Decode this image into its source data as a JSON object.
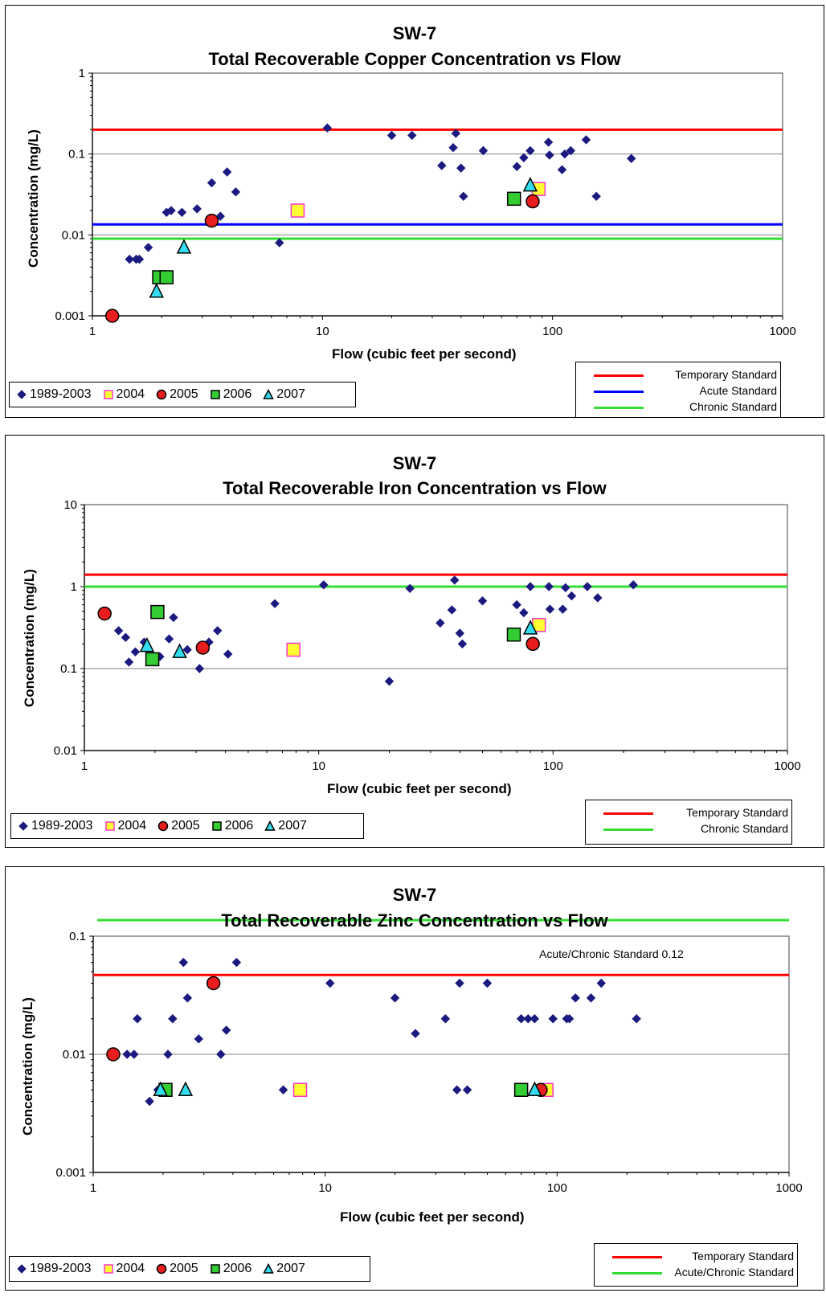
{
  "chart_data": [
    {
      "type": "scatter",
      "title": "SW-7",
      "subtitle": "Total Recoverable Copper Concentration vs Flow",
      "xlabel": "Flow (cubic feet per second)",
      "ylabel": "Concentration (mg/L)",
      "xscale": "log",
      "yscale": "log",
      "xlim": [
        1,
        1000
      ],
      "ylim": [
        0.001,
        1
      ],
      "xticks": [
        "1",
        "10",
        "100",
        "1000"
      ],
      "yticks": [
        "0.001",
        "0.01",
        "0.1",
        "1"
      ],
      "grid": "horizontal",
      "series": [
        {
          "name": "1989-2003",
          "marker": "diamond",
          "color": "#1a1a80",
          "x": [
            1.45,
            1.55,
            1.6,
            1.75,
            2.1,
            2.2,
            2.45,
            2.85,
            3.3,
            3.6,
            3.85,
            4.2,
            6.5,
            10.5,
            20,
            24.5,
            33,
            37,
            38,
            40,
            41,
            50,
            70,
            75,
            80,
            96,
            97,
            110,
            113,
            120,
            140,
            155,
            220
          ],
          "y": [
            0.005,
            0.005,
            0.005,
            0.007,
            0.019,
            0.02,
            0.019,
            0.021,
            0.044,
            0.017,
            0.06,
            0.034,
            0.008,
            0.21,
            0.17,
            0.17,
            0.072,
            0.12,
            0.18,
            0.067,
            0.03,
            0.11,
            0.07,
            0.09,
            0.11,
            0.14,
            0.097,
            0.064,
            0.1,
            0.11,
            0.15,
            0.03,
            0.088
          ]
        },
        {
          "name": "2004",
          "marker": "square",
          "color": "#ffff33",
          "stroke": "#ff33cc",
          "x": [
            7.8,
            87
          ],
          "y": [
            0.02,
            0.037
          ]
        },
        {
          "name": "2005",
          "marker": "circle",
          "color": "#e81e1e",
          "x": [
            1.22,
            3.3,
            82
          ],
          "y": [
            0.001,
            0.015,
            0.026
          ]
        },
        {
          "name": "2006",
          "marker": "square",
          "color": "#33cc33",
          "x": [
            1.95,
            2.1,
            68
          ],
          "y": [
            0.003,
            0.003,
            0.028
          ]
        },
        {
          "name": "2007",
          "marker": "triangle",
          "color": "#33ddee",
          "x": [
            1.9,
            2.5,
            80
          ],
          "y": [
            0.002,
            0.007,
            0.041
          ]
        }
      ],
      "standards": [
        {
          "name": "Temporary Standard",
          "value": 0.2,
          "color": "#ff0000"
        },
        {
          "name": "Acute Standard",
          "value": 0.0135,
          "color": "#0000ff"
        },
        {
          "name": "Chronic Standard",
          "value": 0.009,
          "color": "#33dd33"
        }
      ]
    },
    {
      "type": "scatter",
      "title": "SW-7",
      "subtitle": "Total Recoverable Iron Concentration vs Flow",
      "xlabel": "Flow (cubic feet per second)",
      "ylabel": "Concentration (mg/L)",
      "xscale": "log",
      "yscale": "log",
      "xlim": [
        1,
        1000
      ],
      "ylim": [
        0.01,
        10
      ],
      "xticks": [
        "1",
        "10",
        "100",
        "1000"
      ],
      "yticks": [
        "0.01",
        "0.1",
        "1",
        "10"
      ],
      "grid": "horizontal",
      "series": [
        {
          "name": "1989-2003",
          "marker": "diamond",
          "color": "#1a1a80",
          "x": [
            1.4,
            1.5,
            1.55,
            1.65,
            1.8,
            2.1,
            2.3,
            2.4,
            2.75,
            3.1,
            3.4,
            3.7,
            4.1,
            6.5,
            10.5,
            20,
            24.5,
            33,
            37,
            38,
            40,
            41,
            50,
            70,
            75,
            80,
            96,
            97,
            110,
            113,
            120,
            140,
            155,
            220
          ],
          "y": [
            0.29,
            0.24,
            0.12,
            0.16,
            0.21,
            0.14,
            0.23,
            0.42,
            0.17,
            0.1,
            0.21,
            0.29,
            0.15,
            0.62,
            1.05,
            0.07,
            0.95,
            0.36,
            0.52,
            1.2,
            0.27,
            0.2,
            0.67,
            0.6,
            0.48,
            1.0,
            1.0,
            0.53,
            0.53,
            0.97,
            0.77,
            1.0,
            0.73,
            1.05
          ]
        },
        {
          "name": "2004",
          "marker": "square",
          "color": "#ffff33",
          "stroke": "#ff33cc",
          "x": [
            7.8,
            87
          ],
          "y": [
            0.17,
            0.34
          ]
        },
        {
          "name": "2005",
          "marker": "circle",
          "color": "#e81e1e",
          "x": [
            1.22,
            3.2,
            82
          ],
          "y": [
            0.47,
            0.18,
            0.2
          ]
        },
        {
          "name": "2006",
          "marker": "square",
          "color": "#33cc33",
          "x": [
            1.95,
            2.05,
            68
          ],
          "y": [
            0.13,
            0.49,
            0.26
          ]
        },
        {
          "name": "2007",
          "marker": "triangle",
          "color": "#33ddee",
          "x": [
            1.85,
            2.55,
            80
          ],
          "y": [
            0.19,
            0.16,
            0.31
          ]
        }
      ],
      "standards": [
        {
          "name": "Temporary Standard",
          "value": 1.4,
          "color": "#ff0000"
        },
        {
          "name": "Chronic Standard",
          "value": 1.0,
          "color": "#33dd33"
        }
      ]
    },
    {
      "type": "scatter",
      "title": "SW-7",
      "subtitle": "Total Recoverable Zinc Concentration vs Flow",
      "xlabel": "Flow (cubic feet per second)",
      "ylabel": "Concentration (mg/L)",
      "xscale": "log",
      "yscale": "log",
      "xlim": [
        1,
        1000
      ],
      "ylim": [
        0.001,
        0.1
      ],
      "xticks": [
        "1",
        "10",
        "100",
        "1000"
      ],
      "yticks": [
        "0.001",
        "0.01",
        "0.1"
      ],
      "grid": "horizontal",
      "annotation": "Acute/Chronic Standard  0.12",
      "series": [
        {
          "name": "1989-2003",
          "marker": "diamond",
          "color": "#1a1a80",
          "x": [
            1.4,
            1.5,
            1.55,
            1.75,
            1.9,
            2.1,
            2.2,
            2.45,
            2.55,
            2.85,
            3.55,
            3.75,
            4.15,
            6.6,
            10.5,
            20,
            24.5,
            33,
            37,
            38,
            41,
            50,
            70,
            75,
            80,
            96,
            110,
            113,
            120,
            140,
            155,
            220
          ],
          "y": [
            0.01,
            0.01,
            0.02,
            0.004,
            0.005,
            0.01,
            0.02,
            0.06,
            0.03,
            0.0135,
            0.01,
            0.016,
            0.06,
            0.005,
            0.04,
            0.03,
            0.015,
            0.02,
            0.005,
            0.04,
            0.005,
            0.04,
            0.02,
            0.02,
            0.02,
            0.02,
            0.02,
            0.02,
            0.03,
            0.03,
            0.04,
            0.02
          ]
        },
        {
          "name": "2004",
          "marker": "square",
          "color": "#ffff33",
          "stroke": "#ff33cc",
          "x": [
            7.8,
            90
          ],
          "y": [
            0.005,
            0.005
          ]
        },
        {
          "name": "2005",
          "marker": "circle",
          "color": "#e81e1e",
          "x": [
            1.22,
            3.3,
            85
          ],
          "y": [
            0.01,
            0.04,
            0.005
          ]
        },
        {
          "name": "2006",
          "marker": "square",
          "color": "#33cc33",
          "x": [
            2.05,
            70
          ],
          "y": [
            0.005,
            0.005
          ]
        },
        {
          "name": "2007",
          "marker": "triangle",
          "color": "#33ddee",
          "x": [
            1.95,
            2.5,
            80
          ],
          "y": [
            0.005,
            0.005,
            0.005
          ]
        }
      ],
      "standards": [
        {
          "name": "Temporary Standard",
          "value": 0.047,
          "color": "#ff0000"
        },
        {
          "name": "Acute/Chronic Standard",
          "value": 0.12,
          "color": "#33dd33"
        }
      ]
    }
  ]
}
